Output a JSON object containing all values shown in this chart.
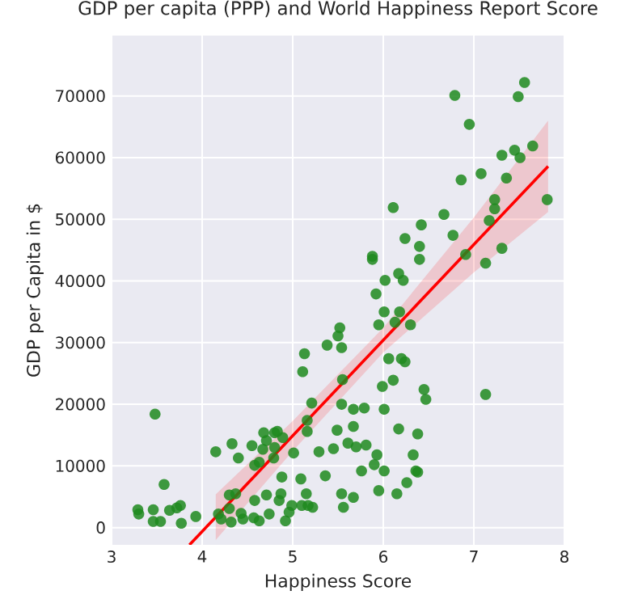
{
  "chart_data": {
    "type": "scatter",
    "title": "GDP per capita (PPP) and World Happiness Report Score",
    "xlabel": "Happiness Score",
    "ylabel": "GDP per Capita in $",
    "xlim": [
      3,
      8
    ],
    "ylim": [
      -2800,
      79800
    ],
    "xticks": [
      3,
      4,
      5,
      6,
      7,
      8
    ],
    "yticks": [
      0,
      10000,
      20000,
      30000,
      40000,
      50000,
      60000,
      70000
    ],
    "grid": true,
    "series": [
      {
        "color": "#1f8a1f",
        "marker": "circle",
        "x": [
          3.29,
          3.3,
          3.46,
          3.46,
          3.54,
          3.48,
          3.58,
          3.64,
          3.72,
          3.76,
          3.77,
          3.93,
          4.15,
          4.33,
          4.4,
          4.3,
          4.37,
          4.18,
          4.21,
          4.3,
          4.32,
          4.43,
          4.45,
          4.57,
          4.63,
          4.58,
          4.71,
          4.74,
          4.85,
          4.87,
          4.92,
          4.96,
          4.99,
          4.88,
          4.55,
          4.58,
          4.63,
          4.67,
          4.68,
          4.71,
          4.8,
          4.83,
          4.8,
          4.79,
          4.89,
          5.01,
          5.09,
          5.15,
          5.1,
          5.17,
          5.22,
          5.16,
          5.16,
          5.21,
          5.13,
          5.11,
          5.29,
          5.36,
          5.45,
          5.49,
          5.54,
          5.55,
          5.61,
          5.67,
          5.67,
          5.54,
          5.56,
          5.67,
          5.38,
          5.52,
          5.5,
          5.54,
          6.79,
          6.95,
          7.56,
          7.49,
          7.31,
          7.45,
          7.51,
          7.65,
          7.08,
          6.86,
          7.36,
          6.11,
          7.23,
          7.23,
          7.17,
          7.81,
          6.42,
          6.67,
          6.24,
          6.4,
          6.4,
          6.77,
          6.91,
          7.31,
          7.13,
          5.88,
          5.88,
          6.02,
          6.17,
          6.22,
          5.92,
          6.01,
          6.18,
          5.95,
          6.13,
          6.3,
          6.06,
          6.2,
          6.24,
          5.99,
          6.11,
          6.45,
          6.47,
          7.13,
          5.79,
          6.01,
          6.17,
          6.38,
          5.7,
          5.81,
          5.93,
          6.33,
          5.9,
          6.01,
          5.76,
          6.36,
          6.38,
          6.26,
          5.95,
          6.15
        ],
        "values": [
          2900,
          2200,
          2900,
          1000,
          1000,
          18400,
          7000,
          2800,
          3200,
          3600,
          700,
          1800,
          12300,
          13600,
          11300,
          5300,
          5500,
          2200,
          1400,
          3100,
          900,
          2300,
          1400,
          1600,
          1100,
          4400,
          5300,
          2200,
          4400,
          5500,
          1100,
          2500,
          3600,
          8200,
          13300,
          10100,
          10600,
          12700,
          15400,
          14100,
          15400,
          15600,
          13000,
          11300,
          14600,
          12100,
          7900,
          5500,
          3600,
          3600,
          3300,
          15600,
          17400,
          20200,
          28200,
          25300,
          12300,
          8400,
          12800,
          15800,
          20000,
          24000,
          13700,
          16400,
          19200,
          5500,
          3300,
          4900,
          29600,
          32400,
          31100,
          29200,
          70100,
          65400,
          72200,
          69900,
          60400,
          61200,
          60000,
          61900,
          57400,
          56400,
          56700,
          51900,
          53200,
          51700,
          49800,
          53200,
          49100,
          50800,
          46900,
          45600,
          43500,
          47400,
          44300,
          45300,
          42900,
          44000,
          43500,
          40100,
          41200,
          40100,
          37900,
          35000,
          35000,
          32900,
          33300,
          32900,
          27400,
          27400,
          26900,
          22900,
          23900,
          22400,
          20800,
          21600,
          19400,
          19200,
          16000,
          15200,
          13100,
          13400,
          11800,
          11800,
          10200,
          9200,
          9200,
          9200,
          9000,
          7300,
          6000,
          5500
        ]
      },
      {
        "type": "line",
        "color": "#ff0000",
        "marker": "none",
        "x": [
          3.86,
          4.15,
          5,
          6,
          7,
          7.82
        ],
        "values": [
          -2800,
          1700,
          14900,
          30400,
          45900,
          58600
        ],
        "lower": [
          null,
          -2000,
          12400,
          28400,
          41400,
          51200
        ],
        "upper": [
          null,
          5400,
          17300,
          32400,
          50300,
          66000
        ]
      }
    ]
  }
}
